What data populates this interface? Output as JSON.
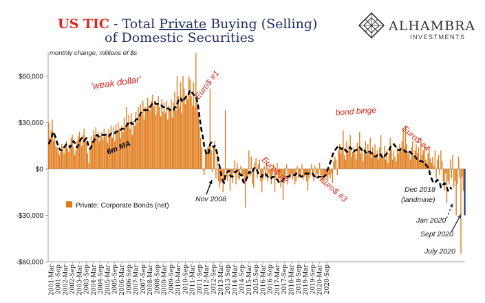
{
  "header": {
    "title_red": "US TIC",
    "title_part1": " - Total ",
    "title_underlined": "Private",
    "title_part2": " Buying (Selling)",
    "title_line2": "of Domestic Securities",
    "subtitle": "monthly change, millions of $s"
  },
  "logo": {
    "name": "ALHAMBRA",
    "tagline": "INVESTMENTS",
    "icon": "diamond-lattice-icon"
  },
  "colors": {
    "bar": "#E07B1B",
    "title_red": "#E3231C",
    "annotation_red": "#D7261E",
    "ma_line": "#000000",
    "arrow_blue": "#1F3A6E",
    "highlight_bar": "#1F3A6E"
  },
  "chart_data": {
    "type": "bar",
    "unit": "monthly change, millions of $s",
    "ylim": [
      -60000,
      75000
    ],
    "yticks": [
      60000,
      30000,
      0,
      -30000,
      -60000
    ],
    "ytick_labels": [
      "$60,000",
      "$30,000",
      "$0",
      "-$30,000",
      "-$60,000"
    ],
    "xtick_labels": [
      "2001-Mar",
      "2001-Sep",
      "2002-Mar",
      "2002-Sep",
      "2003-Mar",
      "2003-Sep",
      "2004-Mar",
      "2004-Sep",
      "2005-Mar",
      "2005-Sep",
      "2006-Mar",
      "2006-Sep",
      "2007-Mar",
      "2007-Sep",
      "2008-Mar",
      "2008-Sep",
      "2009-Mar",
      "2009-Sep",
      "2010-Mar",
      "2010-Sep",
      "2011-Mar",
      "2011-Sep",
      "2012-Mar",
      "2012-Sep",
      "2013-Mar",
      "2013-Sep",
      "2014-Mar",
      "2014-Sep",
      "2015-Mar",
      "2015-Sep",
      "2016-Mar",
      "2016-Sep",
      "2017-Mar",
      "2017-Sep",
      "2018-Mar",
      "2018-Sep",
      "2019-Mar",
      "2019-Sep",
      "2020-Mar",
      "2020-Sep"
    ],
    "grid": false,
    "legend": {
      "label": "Private; Corporate Bonds (net)",
      "placement": "lower-left"
    },
    "series": [
      {
        "name": "Private; Corporate Bonds (net)",
        "kind": "bar",
        "start": "2001-01",
        "values": [
          30000,
          20000,
          25000,
          32000,
          18000,
          22000,
          15000,
          14000,
          12000,
          9000,
          11000,
          16000,
          14000,
          10000,
          15000,
          18000,
          13000,
          11000,
          16000,
          20000,
          22000,
          14000,
          9000,
          12000,
          18000,
          21000,
          24000,
          19000,
          15000,
          22000,
          26000,
          20000,
          17000,
          10000,
          4000,
          14000,
          21000,
          18000,
          25000,
          22000,
          27000,
          20000,
          24000,
          18000,
          22000,
          24000,
          19000,
          26000,
          21000,
          23000,
          17000,
          26000,
          22000,
          28000,
          20000,
          27000,
          18000,
          29000,
          23000,
          30000,
          26000,
          20000,
          28000,
          24000,
          33000,
          27000,
          40000,
          30000,
          35000,
          26000,
          36000,
          22000,
          31000,
          28000,
          37000,
          30000,
          40000,
          34000,
          42000,
          35000,
          44000,
          32000,
          40000,
          37000,
          46000,
          41000,
          38000,
          44000,
          48000,
          40000,
          44000,
          35000,
          42000,
          47000,
          40000,
          34000,
          45000,
          37000,
          43000,
          36000,
          44000,
          32000,
          41000,
          38000,
          45000,
          33000,
          43000,
          50000,
          38000,
          60000,
          47000,
          40000,
          56000,
          36000,
          60000,
          52000,
          42000,
          48000,
          45000,
          60000,
          58000,
          47000,
          41000,
          56000,
          40000,
          75000,
          46000,
          36000,
          27000,
          20000,
          14000,
          -1000,
          -4000,
          12000,
          10000,
          14000,
          15000,
          52000,
          12000,
          -2000,
          14000,
          18000,
          -6000,
          12000,
          -8000,
          -12000,
          -9000,
          -4000,
          -15000,
          -10000,
          38000,
          -5000,
          -8000,
          0,
          -14000,
          -5000,
          -9000,
          -2000,
          6000,
          -10000,
          4000,
          -6000,
          -7000,
          2000,
          -5000,
          -4000,
          -9000,
          -25000,
          -7000,
          -6000,
          12000,
          -5000,
          8000,
          -10000,
          -12000,
          4000,
          7000,
          -6000,
          3000,
          6000,
          -8000,
          -15000,
          -7000,
          2000,
          -6000,
          5000,
          -8000,
          -3000,
          -6000,
          -10000,
          -4000,
          3000,
          -15000,
          -7000,
          4000,
          -9000,
          -6000,
          -12000,
          -5000,
          -20000,
          -6000,
          -8000,
          3000,
          -10000,
          -5000,
          -6000,
          -3000,
          -7000,
          -4000,
          -10000,
          -8000,
          2000,
          -6000,
          -5000,
          -4000,
          3000,
          -7000,
          -5000,
          -3000,
          -8000,
          -14000,
          -6000,
          -4000,
          3000,
          -5000,
          -8000,
          2000,
          -6000,
          -3000,
          -5000,
          4000,
          -4000,
          -7000,
          -10000,
          -6000,
          -3000,
          -5000,
          -8000,
          -4000,
          -6000,
          -3000,
          -9000,
          5000,
          8000,
          6000,
          -4000,
          12000,
          16000,
          10000,
          14000,
          25000,
          9000,
          6000,
          18000,
          12000,
          15000,
          22000,
          8000,
          11000,
          14000,
          10000,
          6000,
          17000,
          13000,
          24000,
          10000,
          14000,
          5000,
          11000,
          18000,
          9000,
          16000,
          12000,
          20000,
          7000,
          14000,
          10000,
          16000,
          8000,
          12000,
          6000,
          14000,
          22000,
          10000,
          8000,
          15000,
          6000,
          12000,
          4000,
          10000,
          20000,
          13000,
          6000,
          12000,
          8000,
          5000,
          14000,
          10000,
          16000,
          12000,
          18000,
          26000,
          14000,
          28000,
          16000,
          10000,
          12000,
          6000,
          14000,
          18000,
          8000,
          12000,
          16000,
          10000,
          14000,
          6000,
          20000,
          9000,
          12000,
          15000,
          6000,
          4000,
          10000,
          14000,
          7000,
          4000,
          8000,
          2000,
          12000,
          -6000,
          6000,
          9000,
          -4000,
          12000,
          5000,
          -8000,
          -14000,
          -3000,
          -22000,
          -8000,
          -10000,
          6000,
          -6000,
          9000,
          -12000,
          -8000,
          -30000,
          -10000,
          8000,
          -6000,
          -55000,
          -5000,
          -14000,
          -30000
        ],
        "highlight_last": true
      },
      {
        "name": "6m MA",
        "kind": "line",
        "start": "2001-01",
        "values": [
          16000,
          18000,
          19000,
          22000,
          24000,
          22000,
          20000,
          17000,
          15000,
          13000,
          12000,
          12000,
          13000,
          14000,
          15000,
          16000,
          16000,
          15000,
          14000,
          15000,
          17000,
          18000,
          17000,
          15000,
          14000,
          15000,
          17000,
          19000,
          20000,
          19000,
          18000,
          19000,
          20000,
          17000,
          14000,
          13000,
          14000,
          16000,
          18000,
          19000,
          21000,
          22000,
          21000,
          21000,
          22000,
          22000,
          22000,
          22000,
          22000,
          22000,
          21000,
          21000,
          22000,
          23000,
          23000,
          23000,
          23000,
          24000,
          24000,
          25000,
          25000,
          25000,
          26000,
          26000,
          26000,
          26000,
          28000,
          29000,
          30000,
          29000,
          30000,
          29000,
          30000,
          30000,
          32000,
          32000,
          33000,
          34000,
          36000,
          37000,
          38000,
          38000,
          38000,
          38000,
          38000,
          39000,
          40000,
          41000,
          42000,
          42000,
          43000,
          42000,
          42000,
          42000,
          42000,
          41000,
          41000,
          40000,
          40000,
          40000,
          40000,
          39000,
          39000,
          38000,
          38000,
          38000,
          38000,
          40000,
          40000,
          42000,
          44000,
          45000,
          46000,
          44000,
          46000,
          45000,
          46000,
          47000,
          47000,
          49000,
          51000,
          50000,
          49000,
          48000,
          47000,
          47000,
          44000,
          40000,
          34000,
          28000,
          24000,
          20000,
          15000,
          12000,
          10000,
          9000,
          11000,
          16000,
          17000,
          15000,
          14000,
          15000,
          13000,
          10000,
          6000,
          2000,
          -2000,
          -6000,
          -8000,
          -9000,
          -4000,
          -3000,
          -2000,
          -1000,
          -4000,
          -5000,
          -5000,
          -4000,
          -2000,
          -2000,
          -1000,
          -2000,
          -3000,
          -4000,
          -4000,
          -8000,
          -9000,
          -9000,
          -6000,
          -5000,
          -2000,
          -2000,
          -3000,
          -2000,
          0,
          1000,
          0,
          -1000,
          -3000,
          -4000,
          -5000,
          -5000,
          -3000,
          -3000,
          -3000,
          -4000,
          -5000,
          -5000,
          -6000,
          -6000,
          -5000,
          -5000,
          -6000,
          -6000,
          -7000,
          -8000,
          -9000,
          -9000,
          -8000,
          -7000,
          -6000,
          -6000,
          -5000,
          -5000,
          -5000,
          -4000,
          -4000,
          -4000,
          -4000,
          -4000,
          -3000,
          -3000,
          -3000,
          -4000,
          -5000,
          -5000,
          -4000,
          -4000,
          -3000,
          -3000,
          -3000,
          -3000,
          -3000,
          -3000,
          -3000,
          -4000,
          -5000,
          -6000,
          -6000,
          -5000,
          -5000,
          -5000,
          -6000,
          -5000,
          -5000,
          -4000,
          -2000,
          0,
          2000,
          4000,
          6000,
          9000,
          11000,
          12000,
          13000,
          14000,
          15000,
          14000,
          13000,
          13000,
          14000,
          13000,
          12000,
          11000,
          12000,
          13000,
          14000,
          13000,
          12000,
          11000,
          12000,
          12000,
          13000,
          13000,
          14000,
          13000,
          12000,
          11000,
          12000,
          11000,
          10000,
          10000,
          11000,
          11000,
          10000,
          10000,
          9000,
          8000,
          8000,
          9000,
          10000,
          10000,
          9000,
          8000,
          7000,
          8000,
          9000,
          10000,
          11000,
          12000,
          14000,
          15000,
          16000,
          16000,
          15000,
          14000,
          13000,
          12000,
          12000,
          13000,
          13000,
          12000,
          12000,
          11000,
          11000,
          12000,
          11000,
          11000,
          10000,
          9000,
          9000,
          8000,
          7000,
          6000,
          6000,
          5000,
          5000,
          5000,
          4000,
          4000,
          3000,
          2000,
          1000,
          -1000,
          -4000,
          -6000,
          -8000,
          -9000,
          -9000,
          -8000,
          -7000,
          -8000,
          -9000,
          -12000,
          -11000,
          -10000,
          -9000,
          -10000,
          -12000,
          -14000,
          -13000,
          -12000,
          -13000
        ]
      }
    ],
    "annotations": [
      {
        "text": "'weak dollar'",
        "style": "red-italic"
      },
      {
        "text": "6m MA",
        "style": "black-bold-italic"
      },
      {
        "text": "Euro$ #1",
        "style": "red-italic"
      },
      {
        "text": "Euro$ #2",
        "style": "red-italic"
      },
      {
        "text": "Euro$ #3",
        "style": "red-italic"
      },
      {
        "text": "Euro$ #4",
        "style": "red-italic"
      },
      {
        "text": "bond binge",
        "style": "red-italic"
      },
      {
        "text": "Nov 2008",
        "style": "black-italic"
      },
      {
        "text": "Dec 2018",
        "style": "black-italic"
      },
      {
        "text": "(landmine)",
        "style": "black-italic"
      },
      {
        "text": "Jan 2020",
        "style": "black-italic"
      },
      {
        "text": "Sept 2020",
        "style": "black-italic"
      },
      {
        "text": "July 2020",
        "style": "black-italic"
      }
    ]
  }
}
